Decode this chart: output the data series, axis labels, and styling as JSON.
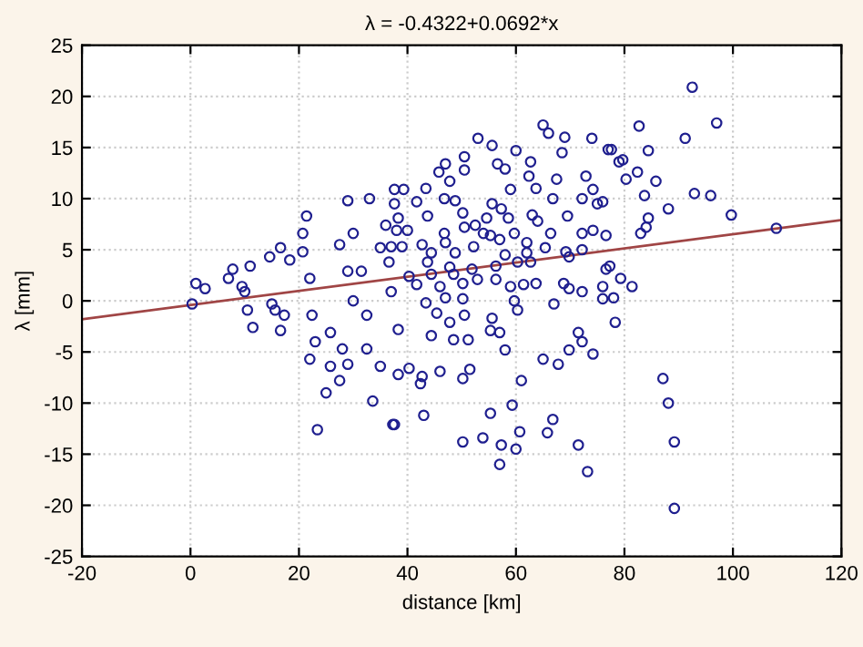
{
  "chart_data": {
    "type": "scatter",
    "title": "λ = -0.4322+0.0692*x",
    "xlabel": "distance [km]",
    "ylabel": "λ [mm]",
    "xlim": [
      -20,
      120
    ],
    "ylim": [
      -25,
      25
    ],
    "xticks": [
      -20,
      0,
      20,
      40,
      60,
      80,
      100,
      120
    ],
    "yticks": [
      -25,
      -20,
      -15,
      -10,
      -5,
      0,
      5,
      10,
      15,
      20,
      25
    ],
    "grid": true,
    "series": [
      {
        "color": "#1f1f8f",
        "marker": "circle",
        "x": [
          1,
          2.7,
          0.3,
          7,
          7.8,
          9.5,
          10,
          10.5,
          11.5,
          11,
          14.6,
          16.6,
          15,
          15.6,
          17.3,
          16.6,
          18.3,
          21.4,
          20.7,
          20.7,
          22,
          23,
          22,
          25,
          23.4,
          27.5,
          28,
          25.8,
          22.4,
          29,
          33,
          30,
          27.5,
          29,
          31.5,
          30,
          32.5,
          33.6,
          35,
          32.5,
          29,
          25.8,
          37.3,
          35,
          36,
          37.6,
          65,
          69,
          74,
          66,
          53,
          55.6,
          60,
          68.5,
          50.5,
          47,
          56.6,
          62.7,
          77,
          79,
          50.5,
          45.8,
          58,
          62.4,
          72.9,
          39.3,
          43.4,
          47.8,
          46.8,
          48.8,
          59,
          63.7,
          67.5,
          74.2,
          66.8,
          72.2,
          75,
          76,
          41.7,
          37.6,
          55.6,
          57.3,
          63,
          69.5,
          38.3,
          43.7,
          50.2,
          54.6,
          58.6,
          64,
          50.5,
          52.5,
          38,
          40,
          46.8,
          54,
          55.3,
          59.7,
          66.4,
          72.2,
          74.2,
          76.6,
          37,
          39,
          42.7,
          47,
          52.2,
          57,
          62,
          65.4,
          69.2,
          72.2,
          44.4,
          48.8,
          58,
          62,
          36.6,
          43.7,
          47.8,
          51.9,
          56.3,
          60.3,
          62.7,
          69.8,
          76.6,
          40.3,
          44.4,
          48.5,
          52.9,
          56.3,
          59,
          37,
          41.7,
          46,
          50.2,
          61.4,
          63.7,
          68.8,
          69.8,
          72.2,
          76,
          79.3,
          43.4,
          47,
          50.2,
          59.7,
          76,
          67,
          45.4,
          50.5,
          60.3,
          55.6,
          47.8,
          78.3,
          38.3,
          55.3,
          57,
          71.5,
          44.4,
          48.5,
          51.2,
          58,
          72.2,
          69.8,
          74.2,
          65,
          67.8,
          38.3,
          40.3,
          42.7,
          46,
          50.2,
          51.5,
          61,
          42.4,
          59.3,
          37.6,
          43,
          55.3,
          66.8,
          60.7,
          65.8,
          50.2,
          53.9,
          57.3,
          60,
          71.5,
          57,
          73.2,
          92.5,
          82.7,
          97,
          91.2,
          77.6,
          84.4,
          79.7,
          82.4,
          80.3,
          85.8,
          83.7,
          92.9,
          95.9,
          88.1,
          99.7,
          84.4,
          84,
          83,
          108,
          77.3,
          81.4,
          78,
          87.1,
          88.1,
          89.2,
          89.2
        ],
        "values": [
          1.7,
          1.2,
          -0.3,
          2.2,
          3.1,
          1.4,
          0.9,
          -0.9,
          -2.6,
          3.4,
          4.3,
          5.2,
          -0.3,
          -0.9,
          -1.4,
          -2.9,
          4.0,
          8.3,
          6.6,
          4.8,
          2.2,
          -4.0,
          -5.7,
          -9,
          -12.6,
          -7.8,
          -4.7,
          -3.1,
          -1.4,
          9.8,
          10,
          6.6,
          5.5,
          2.9,
          2.9,
          0,
          -1.4,
          -9.8,
          -6.4,
          -4.7,
          -6.2,
          -6.4,
          -12.1,
          5.2,
          7.4,
          10.9,
          17.2,
          16,
          15.9,
          16.4,
          15.9,
          15.2,
          14.7,
          14.5,
          14.1,
          13.4,
          13.4,
          13.6,
          14.8,
          13.6,
          12.8,
          12.6,
          12.9,
          12.2,
          12.2,
          10.9,
          11,
          11.7,
          10,
          9.8,
          10.9,
          11,
          11.9,
          10.9,
          10,
          10,
          9.5,
          9.7,
          9.7,
          9.5,
          9.5,
          9,
          8.4,
          8.3,
          8.1,
          8.3,
          8.6,
          8.1,
          8.1,
          7.8,
          7.2,
          7.4,
          6.9,
          6.9,
          6.6,
          6.6,
          6.4,
          6.6,
          6.6,
          6.6,
          6.9,
          6.4,
          5.3,
          5.3,
          5.5,
          5.7,
          5.3,
          6,
          5.7,
          5.2,
          4.8,
          5,
          4.7,
          4.7,
          4.5,
          4.7,
          3.8,
          3.8,
          3.3,
          3.1,
          3.4,
          3.8,
          3.8,
          4.3,
          3.1,
          2.4,
          2.6,
          2.6,
          2.1,
          2.1,
          1.4,
          0.9,
          1.6,
          1.4,
          1.7,
          1.6,
          1.7,
          1.7,
          1.2,
          0.9,
          1.4,
          2.2,
          -0.2,
          0.3,
          0.2,
          0,
          0.2,
          -0.3,
          -1.2,
          -1.4,
          -0.9,
          -1.7,
          -2.1,
          -2.1,
          -2.8,
          -2.9,
          -3.1,
          -3.1,
          -3.4,
          -3.8,
          -3.8,
          -4.8,
          -4,
          -4.8,
          -5.2,
          -5.7,
          -6.2,
          -7.2,
          -6.6,
          -7.4,
          -6.9,
          -7.6,
          -6.7,
          -7.8,
          -8.1,
          -10.2,
          -12.1,
          -11.2,
          -11,
          -11.6,
          -12.8,
          -12.9,
          -13.8,
          -13.4,
          -14.1,
          -14.5,
          -14.1,
          -16,
          -16.7,
          20.9,
          17.1,
          17.4,
          15.9,
          14.8,
          14.7,
          13.8,
          12.6,
          11.9,
          11.7,
          10.3,
          10.5,
          10.3,
          9,
          8.4,
          8.1,
          7.2,
          6.6,
          7.1,
          3.4,
          1.4,
          0.3,
          -7.6,
          -10,
          -13.8,
          -20.3
        ]
      },
      {
        "type": "line",
        "color": "#a04545",
        "x": [
          -20,
          120
        ],
        "values": [
          -1.8,
          7.9
        ]
      }
    ]
  }
}
